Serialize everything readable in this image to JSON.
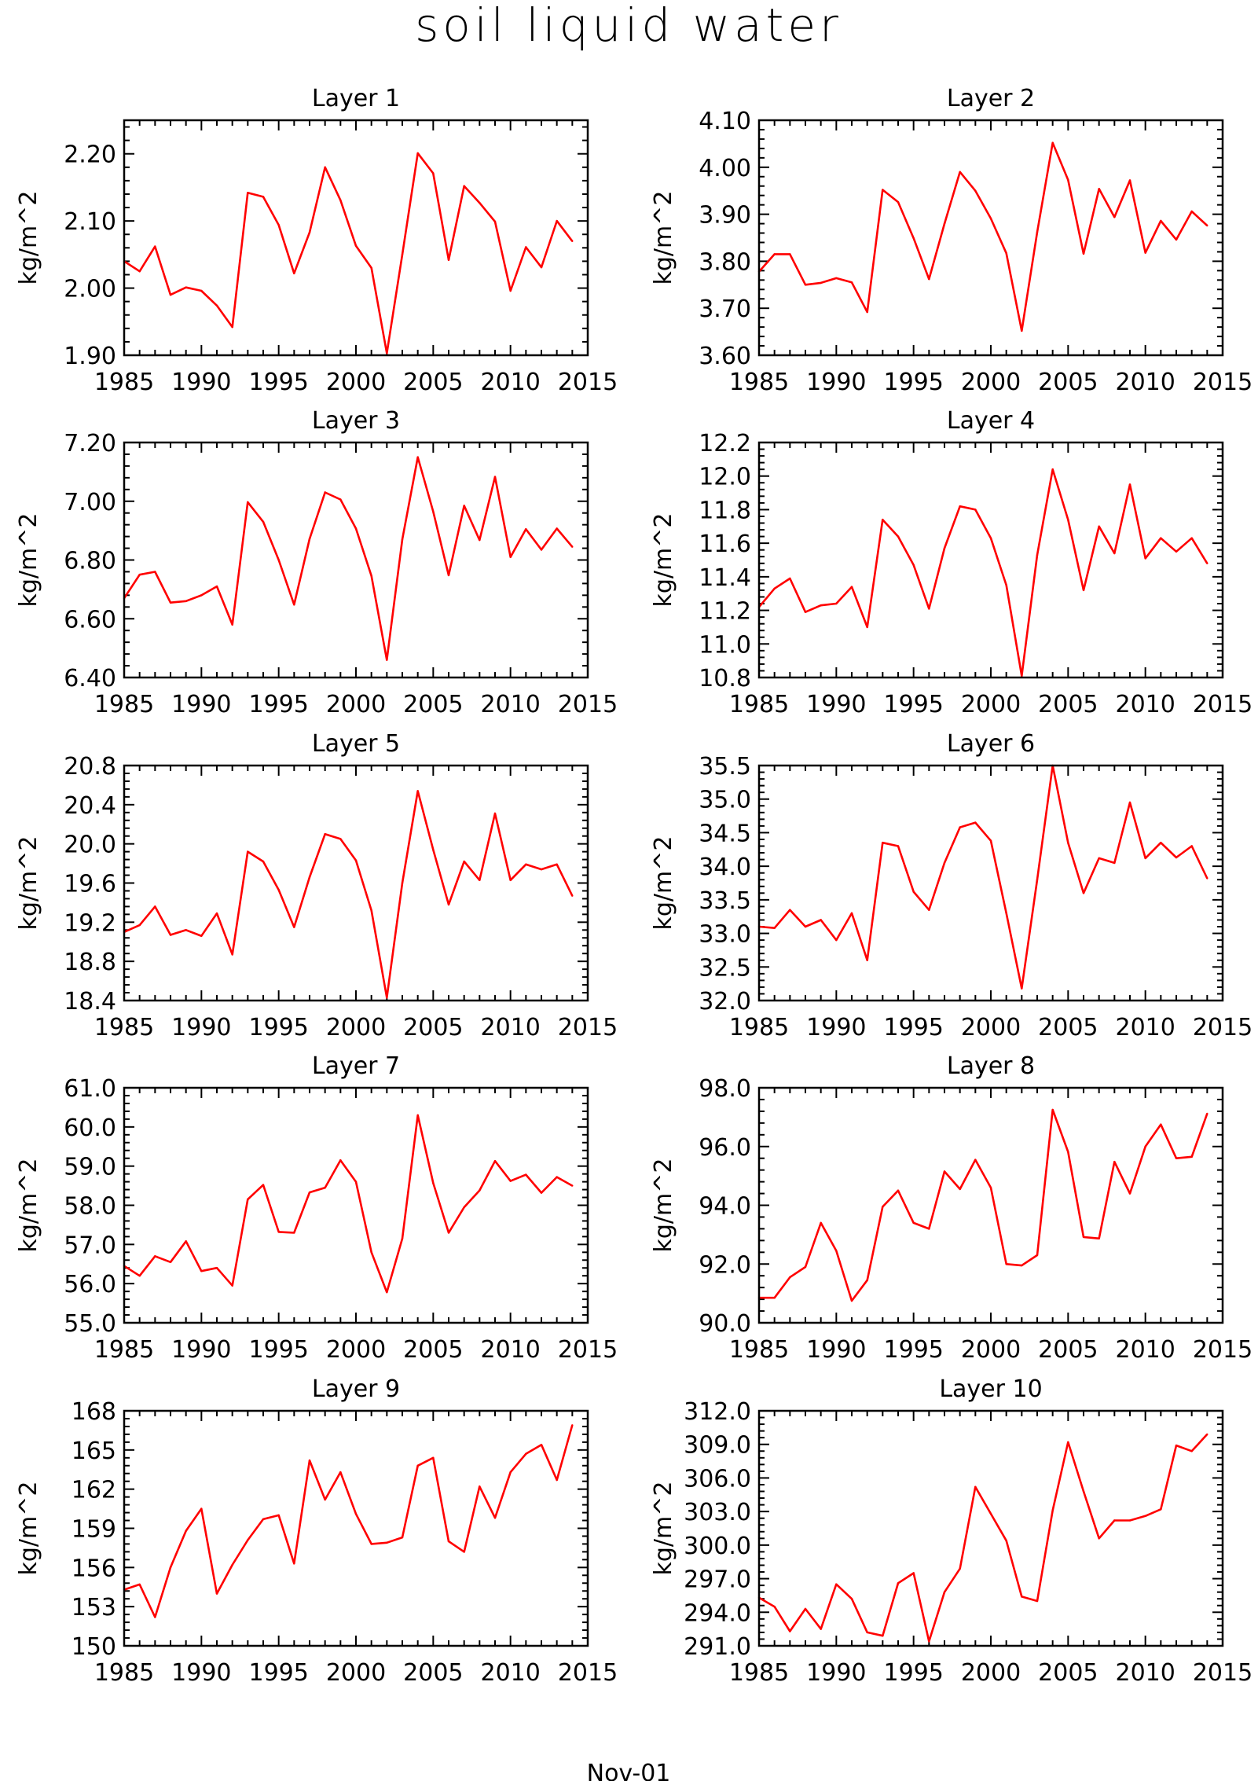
{
  "title": "soil liquid water",
  "footer": "Nov-01",
  "chart_data": [
    {
      "type": "line",
      "title": "Layer 1",
      "ylabel": "kg/m^2",
      "x": [
        1985,
        1986,
        1987,
        1988,
        1989,
        1990,
        1991,
        1992,
        1993,
        1994,
        1995,
        1996,
        1997,
        1998,
        1999,
        2000,
        2001,
        2002,
        2003,
        2004,
        2005,
        2006,
        2007,
        2008,
        2009,
        2010,
        2011,
        2012,
        2013,
        2014
      ],
      "xlim": [
        1985,
        2015
      ],
      "xticks": [
        "1985",
        "1990",
        "1995",
        "2000",
        "2005",
        "2010",
        "2015"
      ],
      "ylim": [
        1.9,
        2.25
      ],
      "yticks": [
        "1.90",
        "2.00",
        "2.10",
        "2.20"
      ],
      "series": [
        {
          "values": [
            2.04,
            2.025,
            2.062,
            1.99,
            2.001,
            1.996,
            1.974,
            1.942,
            2.142,
            2.136,
            2.094,
            2.022,
            2.083,
            2.18,
            2.131,
            2.063,
            2.03,
            1.903,
            2.05,
            2.201,
            2.171,
            2.042,
            2.152,
            2.127,
            2.099,
            1.996,
            2.061,
            2.031,
            2.1,
            2.07
          ],
          "color": "#ff0000"
        }
      ]
    },
    {
      "type": "line",
      "title": "Layer 2",
      "ylabel": "kg/m^2",
      "x": [
        1985,
        1986,
        1987,
        1988,
        1989,
        1990,
        1991,
        1992,
        1993,
        1994,
        1995,
        1996,
        1997,
        1998,
        1999,
        2000,
        2001,
        2002,
        2003,
        2004,
        2005,
        2006,
        2007,
        2008,
        2009,
        2010,
        2011,
        2012,
        2013,
        2014
      ],
      "xlim": [
        1985,
        2015
      ],
      "xticks": [
        "1985",
        "1990",
        "1995",
        "2000",
        "2005",
        "2010",
        "2015"
      ],
      "ylim": [
        3.6,
        4.1
      ],
      "yticks": [
        "3.60",
        "3.70",
        "3.80",
        "3.90",
        "4.00",
        "4.10"
      ],
      "series": [
        {
          "values": [
            3.778,
            3.815,
            3.815,
            3.75,
            3.754,
            3.764,
            3.755,
            3.692,
            3.952,
            3.926,
            3.849,
            3.762,
            3.88,
            3.99,
            3.95,
            3.891,
            3.817,
            3.652,
            3.862,
            4.052,
            3.973,
            3.816,
            3.954,
            3.894,
            3.972,
            3.818,
            3.886,
            3.846,
            3.906,
            3.876
          ],
          "color": "#ff0000"
        }
      ]
    },
    {
      "type": "line",
      "title": "Layer 3",
      "ylabel": "kg/m^2",
      "x": [
        1985,
        1986,
        1987,
        1988,
        1989,
        1990,
        1991,
        1992,
        1993,
        1994,
        1995,
        1996,
        1997,
        1998,
        1999,
        2000,
        2001,
        2002,
        2003,
        2004,
        2005,
        2006,
        2007,
        2008,
        2009,
        2010,
        2011,
        2012,
        2013,
        2014
      ],
      "xlim": [
        1985,
        2015
      ],
      "xticks": [
        "1985",
        "1990",
        "1995",
        "2000",
        "2005",
        "2010",
        "2015"
      ],
      "ylim": [
        6.4,
        7.2
      ],
      "yticks": [
        "6.40",
        "6.60",
        "6.80",
        "7.00",
        "7.20"
      ],
      "series": [
        {
          "values": [
            6.67,
            6.75,
            6.76,
            6.655,
            6.66,
            6.68,
            6.71,
            6.58,
            6.997,
            6.93,
            6.8,
            6.648,
            6.872,
            7.03,
            7.006,
            6.907,
            6.746,
            6.46,
            6.87,
            7.15,
            6.965,
            6.748,
            6.985,
            6.868,
            7.083,
            6.81,
            6.905,
            6.835,
            6.907,
            6.845
          ],
          "color": "#ff0000"
        }
      ]
    },
    {
      "type": "line",
      "title": "Layer 4",
      "ylabel": "kg/m^2",
      "x": [
        1985,
        1986,
        1987,
        1988,
        1989,
        1990,
        1991,
        1992,
        1993,
        1994,
        1995,
        1996,
        1997,
        1998,
        1999,
        2000,
        2001,
        2002,
        2003,
        2004,
        2005,
        2006,
        2007,
        2008,
        2009,
        2010,
        2011,
        2012,
        2013,
        2014
      ],
      "xlim": [
        1985,
        2015
      ],
      "xticks": [
        "1985",
        "1990",
        "1995",
        "2000",
        "2005",
        "2010",
        "2015"
      ],
      "ylim": [
        10.8,
        12.2
      ],
      "yticks": [
        "10.8",
        "11.0",
        "11.2",
        "11.4",
        "11.6",
        "11.8",
        "12.0",
        "12.2"
      ],
      "series": [
        {
          "values": [
            11.22,
            11.33,
            11.39,
            11.19,
            11.23,
            11.24,
            11.34,
            11.1,
            11.74,
            11.64,
            11.47,
            11.21,
            11.57,
            11.82,
            11.8,
            11.63,
            11.35,
            10.81,
            11.53,
            12.04,
            11.74,
            11.32,
            11.7,
            11.54,
            11.95,
            11.51,
            11.63,
            11.55,
            11.63,
            11.48
          ],
          "color": "#ff0000"
        }
      ]
    },
    {
      "type": "line",
      "title": "Layer 5",
      "ylabel": "kg/m^2",
      "x": [
        1985,
        1986,
        1987,
        1988,
        1989,
        1990,
        1991,
        1992,
        1993,
        1994,
        1995,
        1996,
        1997,
        1998,
        1999,
        2000,
        2001,
        2002,
        2003,
        2004,
        2005,
        2006,
        2007,
        2008,
        2009,
        2010,
        2011,
        2012,
        2013,
        2014
      ],
      "xlim": [
        1985,
        2015
      ],
      "xticks": [
        "1985",
        "1990",
        "1995",
        "2000",
        "2005",
        "2010",
        "2015"
      ],
      "ylim": [
        18.4,
        20.8
      ],
      "yticks": [
        "18.4",
        "18.8",
        "19.2",
        "19.6",
        "20.0",
        "20.4",
        "20.8"
      ],
      "series": [
        {
          "values": [
            19.1,
            19.17,
            19.36,
            19.07,
            19.12,
            19.06,
            19.29,
            18.87,
            19.92,
            19.82,
            19.53,
            19.15,
            19.66,
            20.1,
            20.05,
            19.83,
            19.32,
            18.43,
            19.6,
            20.54,
            19.94,
            19.38,
            19.82,
            19.63,
            20.31,
            19.63,
            19.79,
            19.74,
            19.79,
            19.47
          ],
          "color": "#ff0000"
        }
      ]
    },
    {
      "type": "line",
      "title": "Layer 6",
      "ylabel": "kg/m^2",
      "x": [
        1985,
        1986,
        1987,
        1988,
        1989,
        1990,
        1991,
        1992,
        1993,
        1994,
        1995,
        1996,
        1997,
        1998,
        1999,
        2000,
        2001,
        2002,
        2003,
        2004,
        2005,
        2006,
        2007,
        2008,
        2009,
        2010,
        2011,
        2012,
        2013,
        2014
      ],
      "xlim": [
        1985,
        2015
      ],
      "xticks": [
        "1985",
        "1990",
        "1995",
        "2000",
        "2005",
        "2010",
        "2015"
      ],
      "ylim": [
        32.0,
        35.5
      ],
      "yticks": [
        "32.0",
        "32.5",
        "33.0",
        "33.5",
        "34.0",
        "34.5",
        "35.0",
        "35.5"
      ],
      "series": [
        {
          "values": [
            33.1,
            33.08,
            33.35,
            33.1,
            33.2,
            32.9,
            33.3,
            32.6,
            34.35,
            34.3,
            33.62,
            33.35,
            34.05,
            34.58,
            34.65,
            34.38,
            33.3,
            32.18,
            33.8,
            35.5,
            34.35,
            33.6,
            34.12,
            34.05,
            34.95,
            34.12,
            34.35,
            34.13,
            34.3,
            33.82
          ],
          "color": "#ff0000"
        }
      ]
    },
    {
      "type": "line",
      "title": "Layer 7",
      "ylabel": "kg/m^2",
      "x": [
        1985,
        1986,
        1987,
        1988,
        1989,
        1990,
        1991,
        1992,
        1993,
        1994,
        1995,
        1996,
        1997,
        1998,
        1999,
        2000,
        2001,
        2002,
        2003,
        2004,
        2005,
        2006,
        2007,
        2008,
        2009,
        2010,
        2011,
        2012,
        2013,
        2014
      ],
      "xlim": [
        1985,
        2015
      ],
      "xticks": [
        "1985",
        "1990",
        "1995",
        "2000",
        "2005",
        "2010",
        "2015"
      ],
      "ylim": [
        55.0,
        61.0
      ],
      "yticks": [
        "55.0",
        "56.0",
        "57.0",
        "58.0",
        "59.0",
        "60.0",
        "61.0"
      ],
      "series": [
        {
          "values": [
            56.45,
            56.2,
            56.7,
            56.55,
            57.08,
            56.32,
            56.4,
            55.95,
            58.15,
            58.52,
            57.32,
            57.3,
            58.33,
            58.45,
            59.15,
            58.6,
            56.8,
            55.78,
            57.15,
            60.3,
            58.57,
            57.3,
            57.95,
            58.38,
            59.13,
            58.62,
            58.78,
            58.32,
            58.72,
            58.5
          ],
          "color": "#ff0000"
        }
      ]
    },
    {
      "type": "line",
      "title": "Layer 8",
      "ylabel": "kg/m^2",
      "x": [
        1985,
        1986,
        1987,
        1988,
        1989,
        1990,
        1991,
        1992,
        1993,
        1994,
        1995,
        1996,
        1997,
        1998,
        1999,
        2000,
        2001,
        2002,
        2003,
        2004,
        2005,
        2006,
        2007,
        2008,
        2009,
        2010,
        2011,
        2012,
        2013,
        2014
      ],
      "xlim": [
        1985,
        2015
      ],
      "xticks": [
        "1985",
        "1990",
        "1995",
        "2000",
        "2005",
        "2010",
        "2015"
      ],
      "ylim": [
        90.0,
        98.0
      ],
      "yticks": [
        "90.0",
        "92.0",
        "94.0",
        "96.0",
        "98.0"
      ],
      "series": [
        {
          "values": [
            90.85,
            90.85,
            91.55,
            91.9,
            93.4,
            92.45,
            90.75,
            91.45,
            93.95,
            94.5,
            93.4,
            93.2,
            95.15,
            94.55,
            95.55,
            94.6,
            92.0,
            91.95,
            92.3,
            97.25,
            95.82,
            92.92,
            92.87,
            95.48,
            94.4,
            96.0,
            96.75,
            95.6,
            95.65,
            97.12
          ],
          "color": "#ff0000"
        }
      ]
    },
    {
      "type": "line",
      "title": "Layer 9",
      "ylabel": "kg/m^2",
      "x": [
        1985,
        1986,
        1987,
        1988,
        1989,
        1990,
        1991,
        1992,
        1993,
        1994,
        1995,
        1996,
        1997,
        1998,
        1999,
        2000,
        2001,
        2002,
        2003,
        2004,
        2005,
        2006,
        2007,
        2008,
        2009,
        2010,
        2011,
        2012,
        2013,
        2014
      ],
      "xlim": [
        1985,
        2015
      ],
      "xticks": [
        "1985",
        "1990",
        "1995",
        "2000",
        "2005",
        "2010",
        "2015"
      ],
      "ylim": [
        150,
        168
      ],
      "yticks": [
        "150",
        "153",
        "156",
        "159",
        "162",
        "165",
        "168"
      ],
      "series": [
        {
          "values": [
            154.3,
            154.7,
            152.2,
            156.0,
            158.8,
            160.5,
            154.0,
            156.2,
            158.1,
            159.7,
            160.0,
            156.3,
            164.2,
            161.2,
            163.3,
            160.1,
            157.8,
            157.9,
            158.3,
            163.8,
            164.4,
            158.0,
            157.2,
            162.2,
            159.8,
            163.3,
            164.7,
            165.4,
            162.7,
            166.9
          ],
          "color": "#ff0000"
        }
      ]
    },
    {
      "type": "line",
      "title": "Layer 10",
      "ylabel": "kg/m^2",
      "x": [
        1985,
        1986,
        1987,
        1988,
        1989,
        1990,
        1991,
        1992,
        1993,
        1994,
        1995,
        1996,
        1997,
        1998,
        1999,
        2000,
        2001,
        2002,
        2003,
        2004,
        2005,
        2006,
        2007,
        2008,
        2009,
        2010,
        2011,
        2012,
        2013,
        2014
      ],
      "xlim": [
        1985,
        2015
      ],
      "xticks": [
        "1985",
        "1990",
        "1995",
        "2000",
        "2005",
        "2010",
        "2015"
      ],
      "ylim": [
        291.0,
        312.0
      ],
      "yticks": [
        "291.0",
        "294.0",
        "297.0",
        "300.0",
        "303.0",
        "306.0",
        "309.0",
        "312.0"
      ],
      "series": [
        {
          "values": [
            295.3,
            294.5,
            292.3,
            294.3,
            292.5,
            296.5,
            295.2,
            292.2,
            291.9,
            296.6,
            297.5,
            291.4,
            295.8,
            297.9,
            305.2,
            302.8,
            300.4,
            295.4,
            295.0,
            303.1,
            309.2,
            304.8,
            300.6,
            302.2,
            302.2,
            302.6,
            303.2,
            308.9,
            308.4,
            309.9
          ],
          "color": "#ff0000"
        }
      ]
    }
  ]
}
